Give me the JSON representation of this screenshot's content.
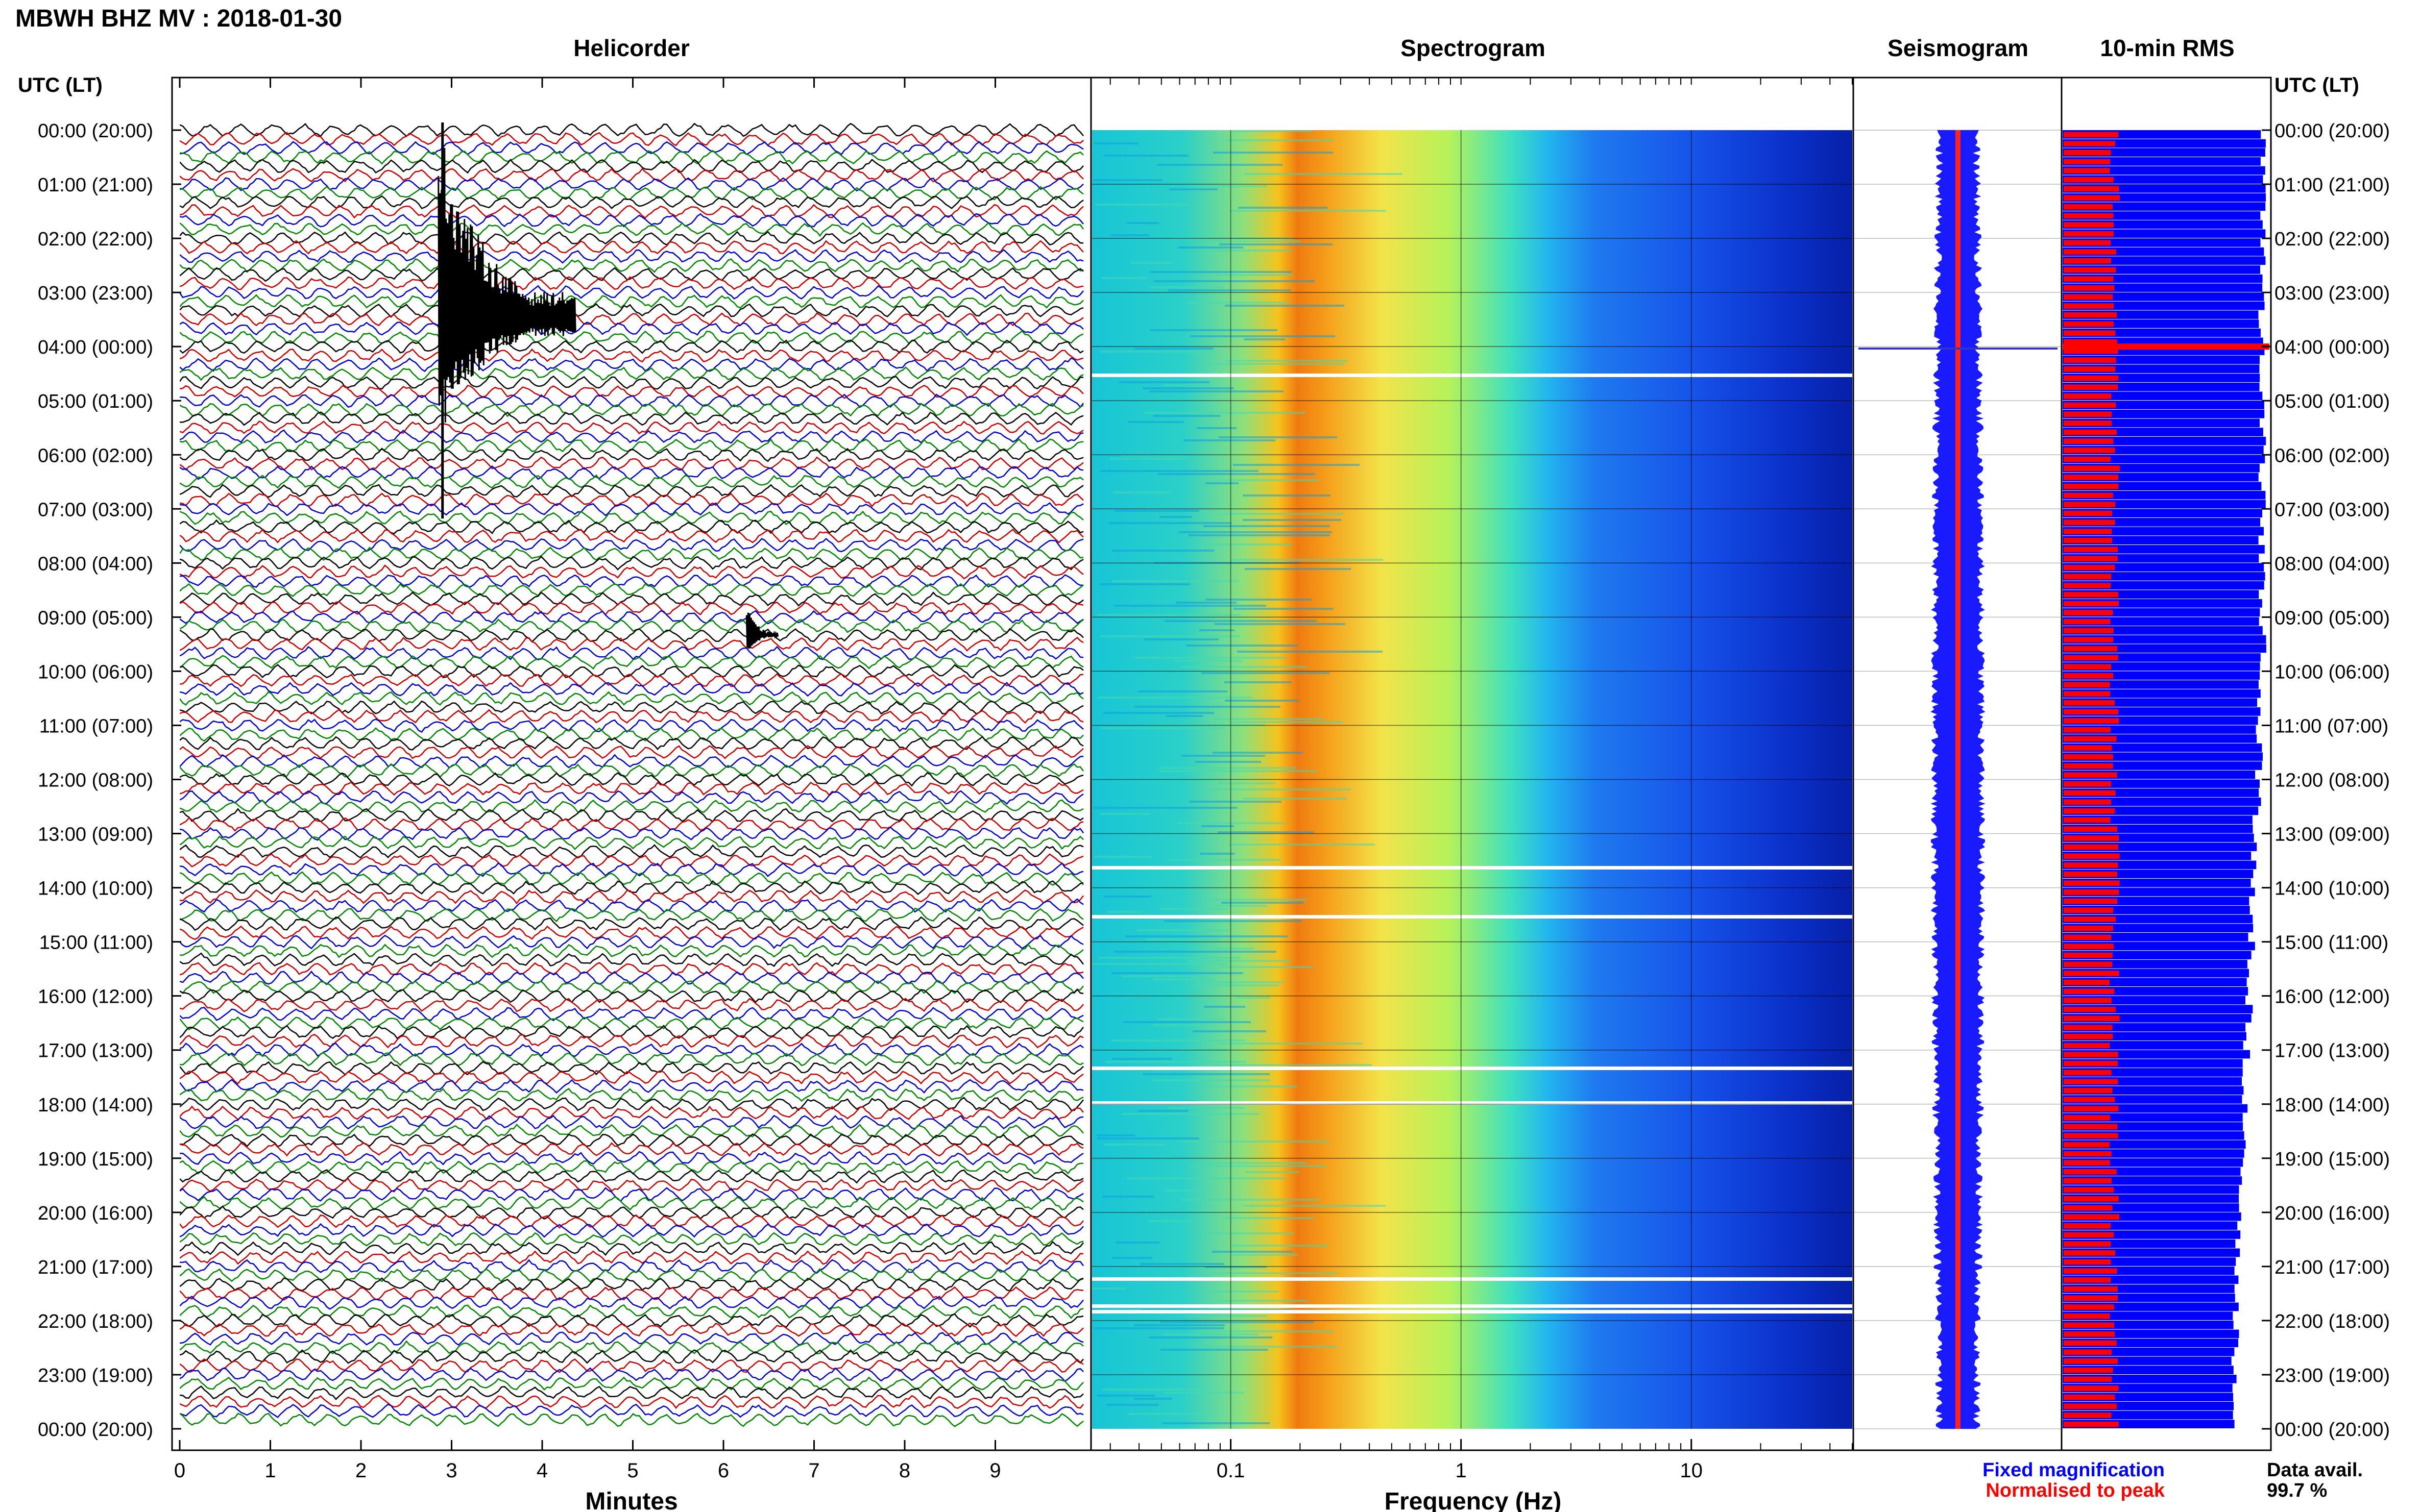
{
  "header": {
    "title": "MBWH BHZ MV : 2018-01-30"
  },
  "panels": {
    "helicorder": "Helicorder",
    "spectrogram": "Spectrogram",
    "seismogram": "Seismogram",
    "rms": "10-min RMS"
  },
  "axis": {
    "time_label_left": "UTC (LT)",
    "time_label_right": "UTC (LT)",
    "minutes_label": "Minutes",
    "frequency_label": "Frequency (Hz)"
  },
  "time_ticks": [
    "00:00 (20:00)",
    "01:00 (21:00)",
    "02:00 (22:00)",
    "03:00 (23:00)",
    "04:00 (00:00)",
    "05:00 (01:00)",
    "06:00 (02:00)",
    "07:00 (03:00)",
    "08:00 (04:00)",
    "09:00 (05:00)",
    "10:00 (06:00)",
    "11:00 (07:00)",
    "12:00 (08:00)",
    "13:00 (09:00)",
    "14:00 (10:00)",
    "15:00 (11:00)",
    "16:00 (12:00)",
    "17:00 (13:00)",
    "18:00 (14:00)",
    "19:00 (15:00)",
    "20:00 (16:00)",
    "21:00 (17:00)",
    "22:00 (18:00)",
    "23:00 (19:00)",
    "00:00 (20:00)"
  ],
  "minute_ticks": [
    "0",
    "1",
    "2",
    "3",
    "4",
    "5",
    "6",
    "7",
    "8",
    "9"
  ],
  "freq_ticks": [
    "0.1",
    "1",
    "10"
  ],
  "legend": {
    "fixed": "Fixed magnification",
    "normalised": "Normalised to peak",
    "fixed_color": "#0000ff",
    "normalised_color": "#ff0000"
  },
  "availability": {
    "label": "Data avail.",
    "value": "99.7 %"
  },
  "colors": {
    "trace_cycle": [
      "#000000",
      "#cc0000",
      "#0000cc",
      "#008800"
    ],
    "rms_fixed": "#0000ff",
    "rms_normalised": "#ff0000"
  },
  "chart_data": {
    "type": "heatmap",
    "station": "MBWH BHZ MV",
    "date": "2018-01-30",
    "x_minutes_range": [
      0,
      10
    ],
    "x_frequency_range_hz": [
      0.025,
      50
    ],
    "frequency_scale": "log",
    "time_range_utc": [
      "00:00",
      "24:00"
    ],
    "events": [
      {
        "time_utc": "03:30",
        "minute": 2.9,
        "description": "large event"
      },
      {
        "time_utc": "09:20",
        "minute": 6.3,
        "description": "small event"
      }
    ],
    "data_available_percent": 99.7
  }
}
